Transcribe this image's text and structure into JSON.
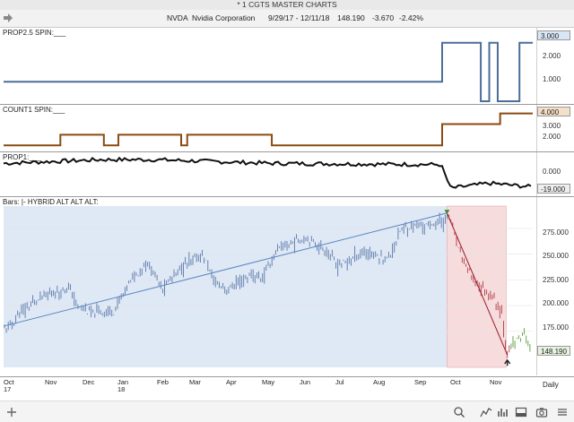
{
  "window": {
    "title": "* 1 CGTS MASTER CHARTS"
  },
  "info": {
    "symbol": "NVDA",
    "company": "Nvidia Corporation",
    "range": "9/29/17 - 12/11/18",
    "last": "148.190",
    "change": "-3.670",
    "pct": "-2.42%"
  },
  "panes": {
    "prop25": {
      "label": "PROP2.5 SPIN:___",
      "ticks": [
        "2.000",
        "1.000"
      ],
      "current": "3.000",
      "current_color": "#d8e6f5"
    },
    "count1": {
      "label": "COUNT1 SPIN:___",
      "ticks": [
        "3.000",
        "2.000"
      ],
      "current": "4.000",
      "current_color": "#f4dfc8"
    },
    "prop1": {
      "label": "PROP1:___",
      "ticks": [
        "0.000"
      ],
      "current": "-19.000",
      "current_color": "#eeeeee"
    },
    "bars": {
      "label": "Bars: |-   HYBRID ALT ALT ALT:",
      "ticks": [
        "275.000",
        "250.000",
        "225.000",
        "200.000",
        "175.000"
      ],
      "current": "148.190",
      "current_color": "#e6f3e0"
    }
  },
  "xaxis": {
    "months": [
      "Oct",
      "Nov",
      "Dec",
      "Jan",
      "Feb",
      "Mar",
      "Apr",
      "May",
      "Jun",
      "Jul",
      "Aug",
      "Sep",
      "Oct",
      "Nov"
    ],
    "years": [
      "17",
      "18"
    ],
    "interval": "Daily"
  },
  "chart_data": {
    "type": "ohlc",
    "symbol": "NVDA",
    "date_range": [
      "2017-09-29",
      "2018-12-11"
    ],
    "interval": "Daily",
    "last": 148.19,
    "ylim": [
      140,
      295
    ],
    "price_points": [
      {
        "date": "2017-10-02",
        "close": 178
      },
      {
        "date": "2017-10-16",
        "close": 196
      },
      {
        "date": "2017-10-31",
        "close": 208
      },
      {
        "date": "2017-11-09",
        "close": 212
      },
      {
        "date": "2017-11-22",
        "close": 218
      },
      {
        "date": "2017-11-29",
        "close": 200
      },
      {
        "date": "2017-12-08",
        "close": 193
      },
      {
        "date": "2017-12-29",
        "close": 194
      },
      {
        "date": "2018-01-10",
        "close": 220
      },
      {
        "date": "2018-01-25",
        "close": 242
      },
      {
        "date": "2018-02-08",
        "close": 217
      },
      {
        "date": "2018-02-26",
        "close": 240
      },
      {
        "date": "2018-03-13",
        "close": 249
      },
      {
        "date": "2018-03-23",
        "close": 222
      },
      {
        "date": "2018-04-02",
        "close": 215
      },
      {
        "date": "2018-04-20",
        "close": 229
      },
      {
        "date": "2018-05-01",
        "close": 226
      },
      {
        "date": "2018-05-14",
        "close": 255
      },
      {
        "date": "2018-06-06",
        "close": 266
      },
      {
        "date": "2018-06-20",
        "close": 256
      },
      {
        "date": "2018-07-03",
        "close": 239
      },
      {
        "date": "2018-07-24",
        "close": 252
      },
      {
        "date": "2018-08-14",
        "close": 245
      },
      {
        "date": "2018-08-24",
        "close": 275
      },
      {
        "date": "2018-09-14",
        "close": 278
      },
      {
        "date": "2018-09-28",
        "close": 282
      },
      {
        "date": "2018-10-03",
        "close": 288
      },
      {
        "date": "2018-10-10",
        "close": 255
      },
      {
        "date": "2018-10-24",
        "close": 222
      },
      {
        "date": "2018-11-08",
        "close": 208
      },
      {
        "date": "2018-11-15",
        "close": 195
      },
      {
        "date": "2018-11-20",
        "close": 153
      },
      {
        "date": "2018-11-29",
        "close": 168
      },
      {
        "date": "2018-12-05",
        "close": 172
      },
      {
        "date": "2018-12-11",
        "close": 148.19
      }
    ],
    "trendlines": [
      {
        "from": {
          "date": "2017-09-29",
          "price": 180
        },
        "to": {
          "date": "2018-10-01",
          "price": 290
        },
        "color": "#5a86c0"
      },
      {
        "from": {
          "date": "2018-10-01",
          "price": 290
        },
        "to": {
          "date": "2018-11-20",
          "price": 152
        },
        "color": "#9b1c2c"
      }
    ],
    "regions": [
      {
        "from": "2017-09-29",
        "to": "2018-10-01",
        "color": "#dfe8f5"
      },
      {
        "from": "2018-10-01",
        "to": "2018-11-19",
        "color": "#f6dcdc"
      }
    ],
    "indicators": {
      "prop2_5_spin": {
        "ylim": [
          0,
          3.4
        ],
        "color": "#4a6e99",
        "steps": [
          {
            "date": "2017-09-29",
            "value": 1
          },
          {
            "date": "2018-09-27",
            "value": 3
          },
          {
            "date": "2018-10-29",
            "value": 0
          },
          {
            "date": "2018-11-05",
            "value": 3
          },
          {
            "date": "2018-11-12",
            "value": 0
          },
          {
            "date": "2018-11-30",
            "value": 3
          }
        ]
      },
      "count1_spin": {
        "ylim": [
          0.6,
          4.3
        ],
        "color": "#8b4a12",
        "steps": [
          {
            "date": "2017-09-29",
            "value": 1
          },
          {
            "date": "2017-11-15",
            "value": 2
          },
          {
            "date": "2017-12-21",
            "value": 1
          },
          {
            "date": "2018-01-02",
            "value": 2
          },
          {
            "date": "2018-02-23",
            "value": 1
          },
          {
            "date": "2018-02-28",
            "value": 2
          },
          {
            "date": "2018-05-09",
            "value": 1
          },
          {
            "date": "2018-09-27",
            "value": 3
          },
          {
            "date": "2018-11-14",
            "value": 4
          }
        ]
      },
      "prop1": {
        "ylim": [
          -25,
          6
        ],
        "color": "#111111",
        "last": -19,
        "points": [
          {
            "date": "2017-09-29",
            "value": 0
          },
          {
            "date": "2017-12-20",
            "value": 3
          },
          {
            "date": "2018-01-31",
            "value": 3
          },
          {
            "date": "2018-05-09",
            "value": 0
          },
          {
            "date": "2018-09-26",
            "value": -1
          },
          {
            "date": "2018-10-04",
            "value": -20
          },
          {
            "date": "2018-11-05",
            "value": -16
          },
          {
            "date": "2018-12-11",
            "value": -19
          }
        ]
      }
    }
  }
}
